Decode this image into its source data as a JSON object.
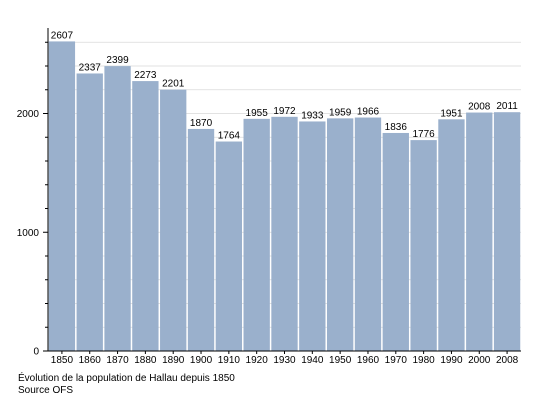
{
  "chart_data": {
    "type": "bar",
    "categories": [
      "1850",
      "1860",
      "1870",
      "1880",
      "1890",
      "1900",
      "1910",
      "1920",
      "1930",
      "1940",
      "1950",
      "1960",
      "1970",
      "1980",
      "1990",
      "2000",
      "2008"
    ],
    "values": [
      2607,
      2337,
      2399,
      2273,
      2201,
      1870,
      1764,
      1955,
      1972,
      1933,
      1959,
      1966,
      1836,
      1776,
      1951,
      2008,
      2011
    ],
    "title": "",
    "xlabel": "",
    "ylabel": "",
    "ylim": [
      0,
      2600
    ],
    "yticks": [
      0,
      1000,
      2000
    ],
    "grid": true,
    "legend": "none",
    "bar_color": "#9ab0cc",
    "grid_color": "#d9d9d9"
  },
  "caption": {
    "title": "Évolution de la population de Hallau depuis 1850",
    "source": "Source OFS"
  }
}
